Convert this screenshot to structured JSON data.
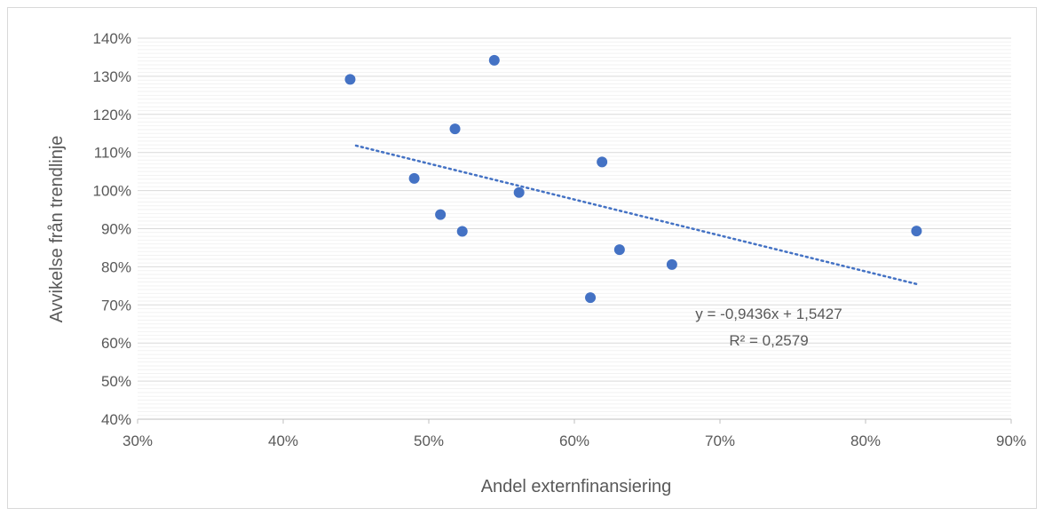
{
  "chart_data": {
    "type": "scatter",
    "title": "",
    "xlabel": "Andel externfinansiering",
    "ylabel": "Avvikelse från trendlinje",
    "xlim": [
      0.3,
      0.9
    ],
    "ylim": [
      0.4,
      1.4
    ],
    "x_ticks": [
      "30%",
      "40%",
      "50%",
      "60%",
      "70%",
      "80%",
      "90%"
    ],
    "y_ticks": [
      "40%",
      "50%",
      "60%",
      "70%",
      "80%",
      "90%",
      "100%",
      "110%",
      "120%",
      "130%",
      "140%"
    ],
    "grid": true,
    "series": [
      {
        "color": "#4472c4",
        "x": [
          0.446,
          0.545,
          0.518,
          0.619,
          0.49,
          0.562,
          0.508,
          0.523,
          0.631,
          0.667,
          0.611,
          0.835
        ],
        "y": [
          1.292,
          1.342,
          1.162,
          1.075,
          1.032,
          0.995,
          0.937,
          0.893,
          0.845,
          0.806,
          0.719,
          0.894
        ]
      }
    ],
    "trendline": {
      "type": "linear",
      "slope": -0.9436,
      "intercept": 1.5427,
      "x_range": [
        0.45,
        0.835
      ],
      "color": "#4472c4",
      "style": "dotted",
      "equation_label": "y = -0,9436x + 1,5427",
      "r2_label": "R² = 0,2579"
    }
  }
}
